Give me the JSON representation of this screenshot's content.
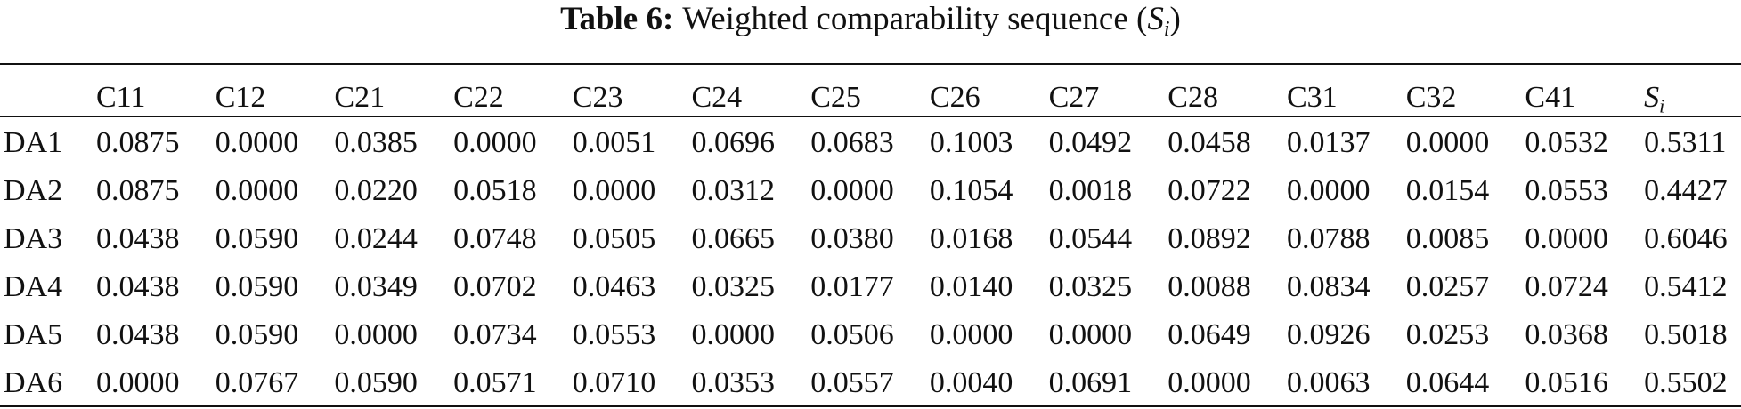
{
  "title": {
    "label": "Table 6:",
    "text": "Weighted comparability sequence",
    "open": "(",
    "symbol": "S",
    "sub": "i",
    "close": ")"
  },
  "table": {
    "columns": [
      "C11",
      "C12",
      "C21",
      "C22",
      "C23",
      "C24",
      "C25",
      "C26",
      "C27",
      "C28",
      "C31",
      "C32",
      "C41"
    ],
    "last_column": {
      "symbol": "S",
      "sub": "i"
    },
    "rows": [
      [
        "DA1",
        "0.0875",
        "0.0000",
        "0.0385",
        "0.0000",
        "0.0051",
        "0.0696",
        "0.0683",
        "0.1003",
        "0.0492",
        "0.0458",
        "0.0137",
        "0.0000",
        "0.0532",
        "0.5311"
      ],
      [
        "DA2",
        "0.0875",
        "0.0000",
        "0.0220",
        "0.0518",
        "0.0000",
        "0.0312",
        "0.0000",
        "0.1054",
        "0.0018",
        "0.0722",
        "0.0000",
        "0.0154",
        "0.0553",
        "0.4427"
      ],
      [
        "DA3",
        "0.0438",
        "0.0590",
        "0.0244",
        "0.0748",
        "0.0505",
        "0.0665",
        "0.0380",
        "0.0168",
        "0.0544",
        "0.0892",
        "0.0788",
        "0.0085",
        "0.0000",
        "0.6046"
      ],
      [
        "DA4",
        "0.0438",
        "0.0590",
        "0.0349",
        "0.0702",
        "0.0463",
        "0.0325",
        "0.0177",
        "0.0140",
        "0.0325",
        "0.0088",
        "0.0834",
        "0.0257",
        "0.0724",
        "0.5412"
      ],
      [
        "DA5",
        "0.0438",
        "0.0590",
        "0.0000",
        "0.0734",
        "0.0553",
        "0.0000",
        "0.0506",
        "0.0000",
        "0.0000",
        "0.0649",
        "0.0926",
        "0.0253",
        "0.0368",
        "0.5018"
      ],
      [
        "DA6",
        "0.0000",
        "0.0767",
        "0.0590",
        "0.0571",
        "0.0710",
        "0.0353",
        "0.0557",
        "0.0040",
        "0.0691",
        "0.0000",
        "0.0063",
        "0.0644",
        "0.0516",
        "0.5502"
      ]
    ]
  }
}
